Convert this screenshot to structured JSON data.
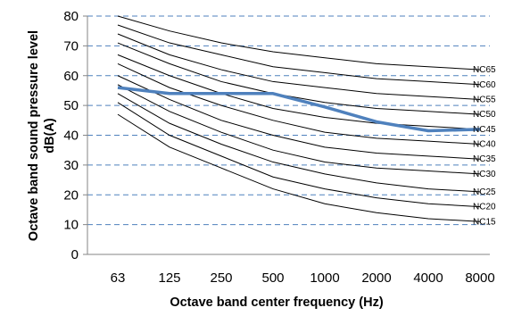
{
  "chart_data": {
    "type": "line",
    "title": "",
    "xlabel": "Octave band center frequency (Hz)",
    "ylabel_line1": "Octave band sound pressure level",
    "ylabel_line2": "dB(A)",
    "categories": [
      "63",
      "125",
      "250",
      "500",
      "1000",
      "2000",
      "4000",
      "8000"
    ],
    "ylim": [
      0,
      80
    ],
    "yticks": [
      0,
      10,
      20,
      30,
      40,
      50,
      60,
      70,
      80
    ],
    "grid": "horizontal-dashed",
    "colors": {
      "nc_curve": "#000000",
      "measured": "#4f81bd",
      "grid": "#4f81bd"
    },
    "nc_curves": [
      {
        "name": "NC15",
        "values": [
          47,
          36,
          29,
          22,
          17,
          14,
          12,
          11
        ]
      },
      {
        "name": "NC20",
        "values": [
          51,
          40,
          33,
          26,
          22,
          19,
          17,
          16
        ]
      },
      {
        "name": "NC25",
        "values": [
          54,
          44,
          37,
          31,
          27,
          24,
          22,
          21
        ]
      },
      {
        "name": "NC30",
        "values": [
          57,
          48,
          41,
          35,
          31,
          29,
          28,
          27
        ]
      },
      {
        "name": "NC35",
        "values": [
          60,
          52,
          45,
          40,
          36,
          34,
          33,
          32
        ]
      },
      {
        "name": "NC40",
        "values": [
          64,
          56,
          50,
          45,
          41,
          39,
          38,
          37
        ]
      },
      {
        "name": "NC45",
        "values": [
          67,
          60,
          54,
          49,
          46,
          44,
          43,
          42
        ]
      },
      {
        "name": "NC50",
        "values": [
          71,
          64,
          58,
          54,
          51,
          49,
          48,
          47
        ]
      },
      {
        "name": "NC55",
        "values": [
          74,
          67,
          62,
          58,
          56,
          54,
          53,
          52
        ]
      },
      {
        "name": "NC60",
        "values": [
          77,
          71,
          67,
          63,
          61,
          59,
          58,
          57
        ]
      },
      {
        "name": "NC65",
        "values": [
          80,
          75,
          71,
          68,
          66,
          64,
          63,
          62
        ]
      }
    ],
    "measured": {
      "values": [
        56,
        54,
        54,
        54,
        49.5,
        44.5,
        41.5,
        42
      ]
    }
  }
}
